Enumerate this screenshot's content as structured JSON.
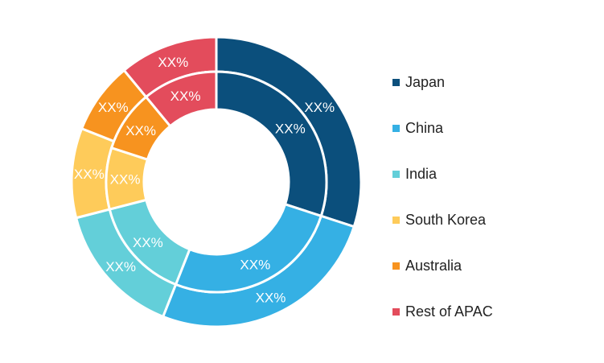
{
  "chart_data": {
    "type": "donut",
    "categories": [
      "Japan",
      "China",
      "India",
      "South Korea",
      "Australia",
      "Rest of APAC"
    ],
    "colors": [
      "#0b4f7c",
      "#35b0e4",
      "#63cfd9",
      "#fecb5a",
      "#f7931f",
      "#e34c5c"
    ],
    "series": [
      {
        "values": [
          30,
          26,
          15,
          10,
          8,
          11
        ],
        "labels": [
          "XX%",
          "XX%",
          "XX%",
          "XX%",
          "XX%",
          "XX%"
        ]
      },
      {
        "values": [
          30,
          26,
          15,
          9,
          9,
          11
        ],
        "labels": [
          "XX%",
          "XX%",
          "XX%",
          "XX%",
          "XX%",
          "XX%"
        ]
      }
    ],
    "legend_position": "right"
  }
}
